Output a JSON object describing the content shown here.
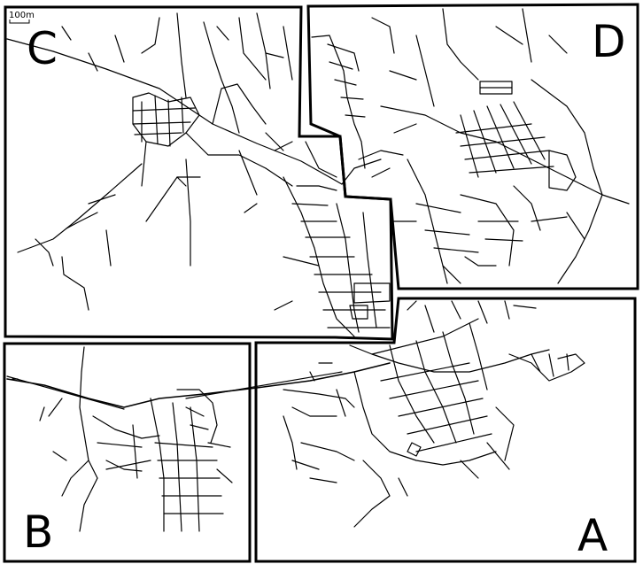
{
  "scale_bar": {
    "label": "100m"
  },
  "regions": [
    {
      "id": "A",
      "label": "A",
      "fill": "vertical-hatch"
    },
    {
      "id": "B",
      "label": "B",
      "fill": "horizontal-hatch"
    },
    {
      "id": "C",
      "label": "C",
      "fill": "horizontal-hatch"
    },
    {
      "id": "D",
      "label": "D",
      "fill": "metallic-gradient"
    }
  ],
  "colors": {
    "line": "#000000",
    "hatch": "#8a8a8a",
    "background": "#ffffff"
  }
}
